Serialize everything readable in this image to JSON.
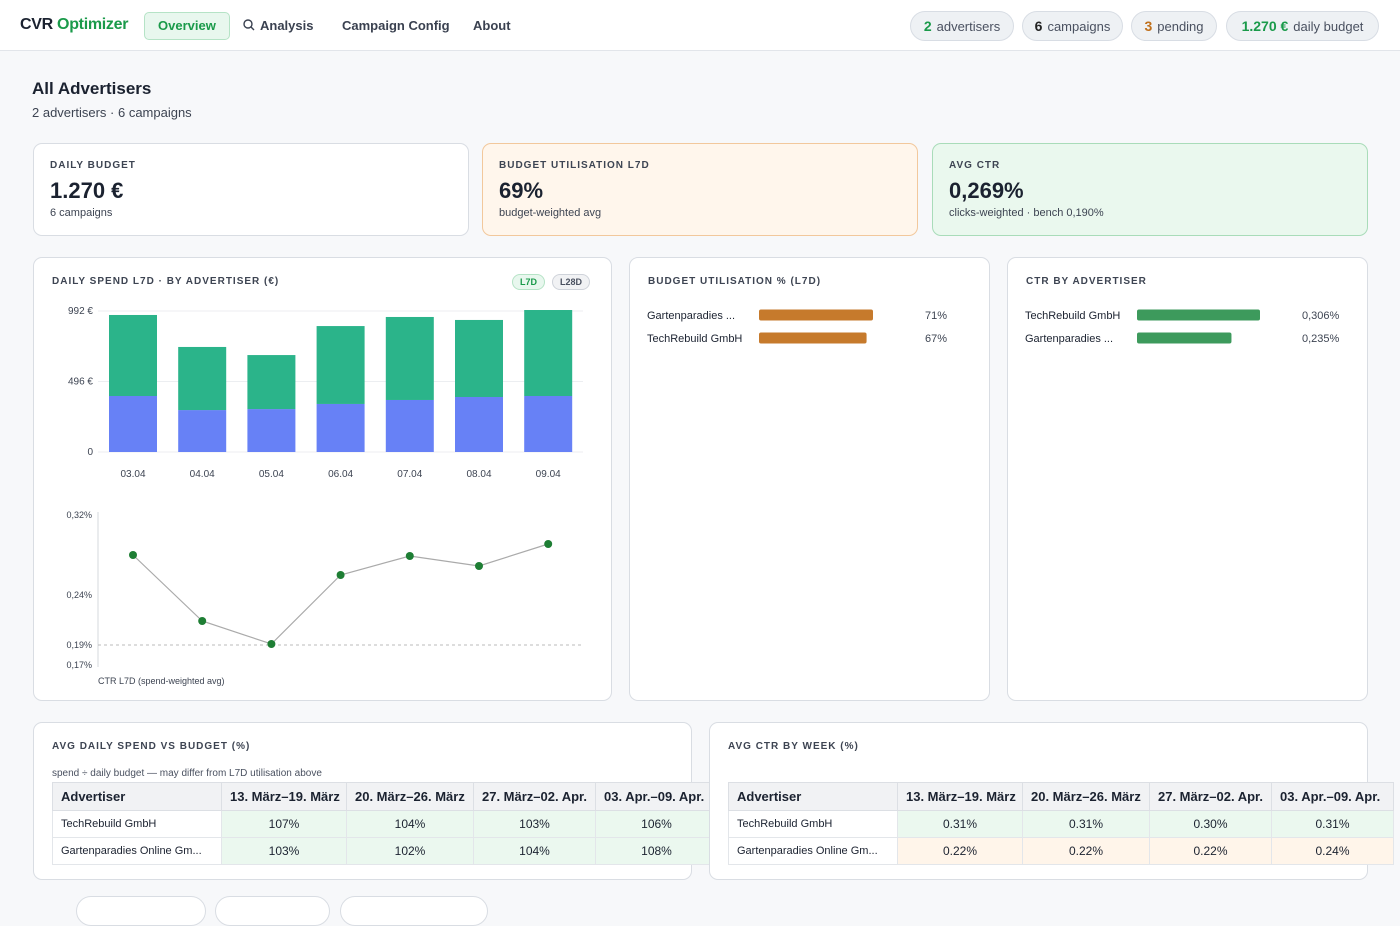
{
  "nav": {
    "brand": [
      "CVR",
      "Optimizer"
    ],
    "tabs": [
      "Overview",
      "Analysis",
      "Campaign Config",
      "About"
    ],
    "stats": [
      {
        "value": "2",
        "label": "advertisers"
      },
      {
        "value": "6",
        "label": "campaigns"
      },
      {
        "value": "3",
        "label": "pending"
      },
      {
        "value": "1.270 €",
        "label": "daily budget"
      }
    ]
  },
  "page": {
    "title": "All Advertisers",
    "subtitle": "2 advertisers · 6 campaigns"
  },
  "kpis": [
    {
      "label": "DAILY BUDGET",
      "value": "1.270 €",
      "note": "6 campaigns"
    },
    {
      "label": "BUDGET UTILISATION L7D",
      "value": "69%",
      "note": "budget-weighted avg"
    },
    {
      "label": "AVG CTR",
      "value": "0,269%",
      "note": "clicks-weighted · bench 0,190%"
    }
  ],
  "chart_data": [
    {
      "type": "bar",
      "stacked": true,
      "title": "DAILY SPEND L7D · BY ADVERTISER (€)",
      "toggles": [
        "L7D",
        "L28D"
      ],
      "categories": [
        "03.04",
        "04.04",
        "05.04",
        "06.04",
        "07.04",
        "08.04",
        "09.04"
      ],
      "series": [
        {
          "color": "#6781f6",
          "values": [
            394,
            295,
            302,
            338,
            366,
            387,
            394
          ]
        },
        {
          "color": "#2bb48a",
          "values": [
            570,
            444,
            380,
            548,
            584,
            542,
            605
          ]
        }
      ],
      "ylim": [
        0,
        992
      ],
      "yticks": [
        0,
        {
          "value": 496,
          "label": "496 €"
        },
        {
          "value": 992,
          "label": "992 €"
        }
      ],
      "grid": true
    },
    {
      "type": "line",
      "x_label": "CTR L7D (spend-weighted avg)",
      "values": [
        0.28,
        0.214,
        0.191,
        0.26,
        0.279,
        0.269,
        0.291
      ],
      "color": "#1e7e34",
      "line_color": "#aaaaaa",
      "reference_line": 0.19,
      "ylim": [
        0.17,
        0.32
      ],
      "yticks": [
        {
          "value": 0.17,
          "label": "0,17%"
        },
        {
          "value": 0.19,
          "label": "0,19%"
        },
        {
          "value": 0.24,
          "label": "0,24%"
        },
        {
          "value": 0.32,
          "label": "0,32%"
        }
      ]
    },
    {
      "type": "hbar",
      "title": "BUDGET UTILISATION % (L7D)",
      "categories": [
        "Gartenparadies ...",
        "TechRebuild GmbH"
      ],
      "values": [
        71,
        67
      ],
      "value_labels": [
        "71%",
        "67%"
      ],
      "color": "#c67a2c"
    },
    {
      "type": "hbar",
      "title": "CTR BY ADVERTISER",
      "categories": [
        "TechRebuild GmbH",
        "Gartenparadies ..."
      ],
      "values": [
        0.306,
        0.235
      ],
      "value_labels": [
        "0,306%",
        "0,235%"
      ],
      "color": "#3d9a5c"
    }
  ],
  "tables": [
    {
      "title": "AVG DAILY SPEND VS BUDGET (%)",
      "note": "spend ÷ daily budget — may differ from L7D utilisation above",
      "columns": [
        "Advertiser",
        "13. März–19. März",
        "20. März–26. März",
        "27. März–02. Apr.",
        "03. Apr.–09. Apr."
      ],
      "rows": [
        [
          "TechRebuild GmbH",
          "107%",
          "104%",
          "103%",
          "106%"
        ],
        [
          "Gartenparadies Online Gm...",
          "103%",
          "102%",
          "104%",
          "108%"
        ]
      ]
    },
    {
      "title": "AVG CTR BY WEEK (%)",
      "columns": [
        "Advertiser",
        "13. März–19. März",
        "20. März–26. März",
        "27. März–02. Apr.",
        "03. Apr.–09. Apr."
      ],
      "rows": [
        [
          "TechRebuild GmbH",
          "0.31%",
          "0.31%",
          "0.30%",
          "0.31%"
        ],
        [
          "Gartenparadies Online Gm...",
          "0.22%",
          "0.22%",
          "0.22%",
          "0.24%"
        ]
      ]
    }
  ]
}
